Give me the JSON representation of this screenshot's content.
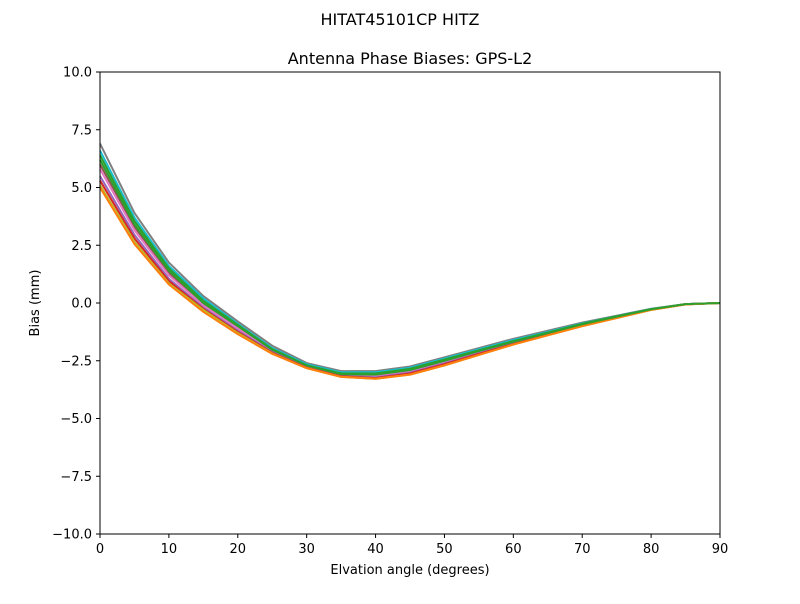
{
  "chart_data": {
    "type": "line",
    "suptitle": "HITAT45101CP    HITZ",
    "title": "Antenna Phase Biases: GPS-L2",
    "xlabel": "Elvation angle (degrees)",
    "ylabel": "Bias (mm)",
    "xlim": [
      0,
      90
    ],
    "ylim": [
      -10,
      10
    ],
    "xticks": [
      0,
      10,
      20,
      30,
      40,
      50,
      60,
      70,
      80,
      90
    ],
    "yticks": [
      -10.0,
      -7.5,
      -5.0,
      -2.5,
      0.0,
      2.5,
      5.0,
      7.5,
      10.0
    ],
    "ytick_labels": [
      "−10.0",
      "−7.5",
      "−5.0",
      "−2.5",
      "0.0",
      "2.5",
      "5.0",
      "7.5",
      "10.0"
    ],
    "grid": false,
    "legend": false,
    "x": [
      0,
      5,
      10,
      15,
      20,
      25,
      30,
      35,
      40,
      45,
      50,
      55,
      60,
      65,
      70,
      75,
      80,
      85,
      90
    ],
    "series": [
      {
        "color": "#7f7f7f",
        "values": [
          6.9,
          3.9,
          1.75,
          0.3,
          -0.8,
          -1.85,
          -2.6,
          -2.95,
          -2.95,
          -2.75,
          -2.35,
          -1.95,
          -1.55,
          -1.2,
          -0.85,
          -0.55,
          -0.25,
          -0.05,
          0.0
        ]
      },
      {
        "color": "#17becf",
        "values": [
          6.6,
          3.7,
          1.6,
          0.2,
          -0.9,
          -1.95,
          -2.65,
          -3.0,
          -3.0,
          -2.8,
          -2.4,
          -2.0,
          -1.6,
          -1.25,
          -0.88,
          -0.57,
          -0.26,
          -0.05,
          0.0
        ]
      },
      {
        "color": "#2ca02c",
        "values": [
          6.4,
          3.55,
          1.5,
          0.1,
          -0.95,
          -2.0,
          -2.7,
          -3.05,
          -3.05,
          -2.85,
          -2.45,
          -2.05,
          -1.65,
          -1.28,
          -0.9,
          -0.58,
          -0.27,
          -0.05,
          0.0
        ]
      },
      {
        "color": "#8c564b",
        "values": [
          6.0,
          3.3,
          1.3,
          -0.05,
          -1.05,
          -2.05,
          -2.72,
          -3.1,
          -3.15,
          -2.95,
          -2.55,
          -2.12,
          -1.7,
          -1.32,
          -0.93,
          -0.6,
          -0.28,
          -0.05,
          0.0
        ]
      },
      {
        "color": "#e377c2",
        "values": [
          5.8,
          3.15,
          1.2,
          -0.1,
          -1.1,
          -2.08,
          -2.75,
          -3.12,
          -3.18,
          -2.98,
          -2.58,
          -2.15,
          -1.73,
          -1.35,
          -0.95,
          -0.61,
          -0.28,
          -0.05,
          0.0
        ]
      },
      {
        "color": "#9467bd",
        "values": [
          5.5,
          2.95,
          1.05,
          -0.2,
          -1.2,
          -2.12,
          -2.78,
          -3.15,
          -3.22,
          -3.02,
          -2.62,
          -2.18,
          -1.76,
          -1.37,
          -0.97,
          -0.62,
          -0.29,
          -0.06,
          0.0
        ]
      },
      {
        "color": "#d62728",
        "values": [
          5.3,
          2.8,
          0.95,
          -0.25,
          -1.25,
          -2.15,
          -2.8,
          -3.17,
          -3.25,
          -3.05,
          -2.65,
          -2.2,
          -1.78,
          -1.38,
          -0.98,
          -0.63,
          -0.29,
          -0.06,
          0.0
        ]
      },
      {
        "color": "#bcbd22",
        "values": [
          5.1,
          2.65,
          0.85,
          -0.3,
          -1.3,
          -2.18,
          -2.82,
          -3.2,
          -3.28,
          -3.1,
          -2.7,
          -2.25,
          -1.8,
          -1.4,
          -1.0,
          -0.65,
          -0.3,
          -0.06,
          0.0
        ]
      },
      {
        "color": "#ff7f0e",
        "values": [
          5.0,
          2.55,
          0.8,
          -0.38,
          -1.35,
          -2.2,
          -2.82,
          -3.2,
          -3.28,
          -3.1,
          -2.7,
          -2.25,
          -1.8,
          -1.4,
          -1.0,
          -0.65,
          -0.3,
          -0.06,
          0.0
        ]
      },
      {
        "color": "#2ca02c",
        "values": [
          6.2,
          3.4,
          1.4,
          0.0,
          -1.0,
          -2.02,
          -2.7,
          -3.08,
          -3.1,
          -2.9,
          -2.5,
          -2.08,
          -1.68,
          -1.3,
          -0.92,
          -0.59,
          -0.27,
          -0.05,
          0.0
        ]
      }
    ]
  }
}
